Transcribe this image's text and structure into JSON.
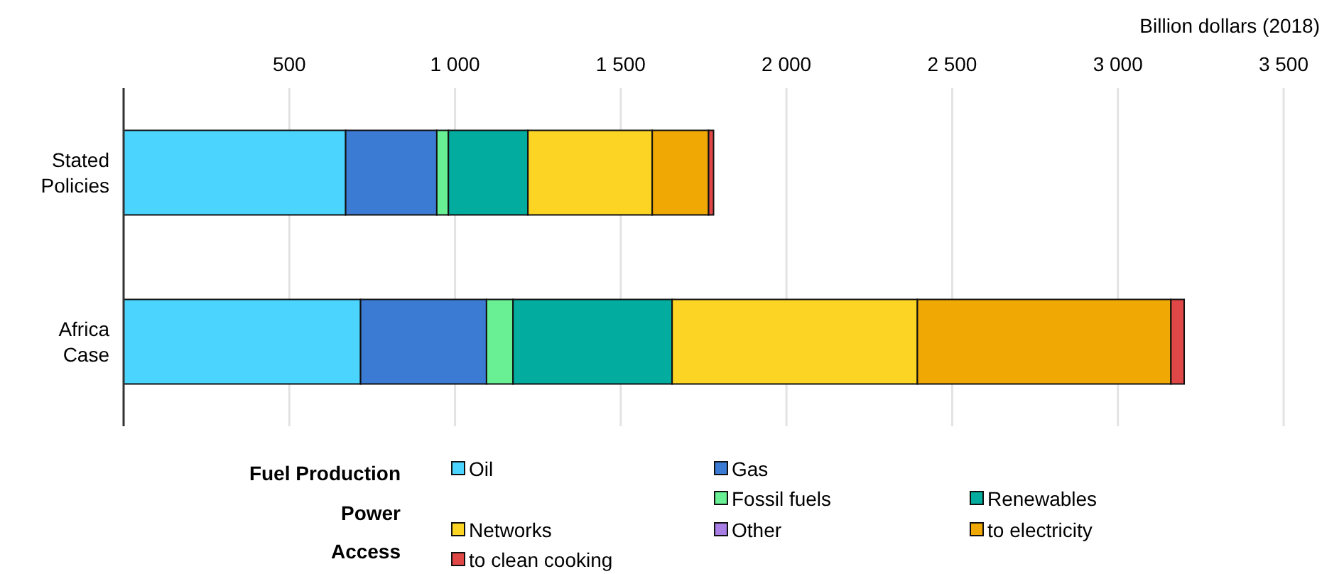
{
  "chart_data": {
    "type": "bar",
    "orientation": "horizontal",
    "stacked": true,
    "xlabel": "Billion dollars (2018)",
    "categories": [
      "Stated Policies",
      "Africa Case"
    ],
    "series": [
      {
        "name": "Oil",
        "color": "#4bd4fe",
        "values": [
          670,
          715
        ]
      },
      {
        "name": "Gas",
        "color": "#3c7bd4",
        "values": [
          275,
          380
        ]
      },
      {
        "name": "Fossil fuels",
        "color": "#69f095",
        "values": [
          35,
          80
        ]
      },
      {
        "name": "Renewables",
        "color": "#02ad9f",
        "values": [
          240,
          480
        ]
      },
      {
        "name": "Networks",
        "color": "#fcd524",
        "values": [
          375,
          740
        ]
      },
      {
        "name": "Other",
        "color": "#a97fe6",
        "values": [
          0,
          0
        ]
      },
      {
        "name": "to electricity",
        "color": "#f0a904",
        "values": [
          170,
          765
        ]
      },
      {
        "name": "to clean cooking",
        "color": "#e04848",
        "values": [
          15,
          40
        ]
      }
    ],
    "xlim": [
      0,
      3500
    ],
    "xticks": [
      500,
      {
        "value": 1000,
        "label": "1 000"
      },
      {
        "value": 1500,
        "label": "1 500"
      },
      {
        "value": 2000,
        "label": "2 000"
      },
      {
        "value": 2500,
        "label": "2 500"
      },
      {
        "value": 3000,
        "label": "3 000"
      },
      {
        "value": 3500,
        "label": "3 500"
      }
    ],
    "grid": "x",
    "legend": "bottom",
    "annotations": [
      "Fuel Production",
      "Power",
      "Access"
    ]
  }
}
